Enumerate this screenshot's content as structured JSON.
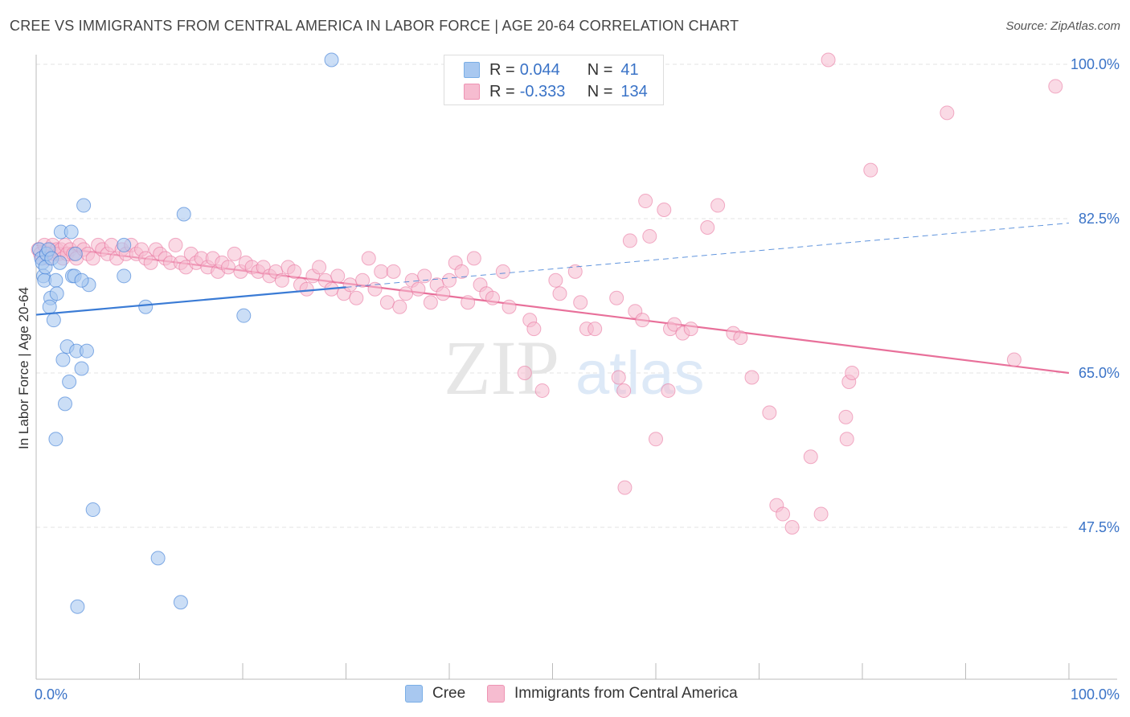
{
  "title": "CREE VS IMMIGRANTS FROM CENTRAL AMERICA IN LABOR FORCE | AGE 20-64 CORRELATION CHART",
  "source": "Source: ZipAtlas.com",
  "watermark": {
    "zip": "ZIP",
    "atlas": "atlas"
  },
  "legend": {
    "r_label": "R =",
    "n_label": "N =",
    "rows": [
      {
        "r": "0.044",
        "n": "41",
        "color": "#a8c8f0"
      },
      {
        "r": "-0.333",
        "n": "134",
        "color": "#f6bcd0"
      }
    ]
  },
  "bottom_legend": [
    "Cree",
    "Immigrants from Central America"
  ],
  "chart_data": {
    "type": "scatter",
    "title": "CREE VS IMMIGRANTS FROM CENTRAL AMERICA IN LABOR FORCE | AGE 20-64 CORRELATION CHART",
    "xlabel": "",
    "ylabel": "In Labor Force | Age 20-64",
    "xlim": [
      0,
      100
    ],
    "ylim": [
      30,
      102
    ],
    "x_tick_labels": [
      "0.0%",
      "100.0%"
    ],
    "y_ticks": [
      47.5,
      65.0,
      82.5,
      100.0
    ],
    "y_tick_labels": [
      "47.5%",
      "65.0%",
      "82.5%",
      "100.0%"
    ],
    "grid": "horizontal dashed",
    "legend_position": "top-center",
    "colors": {
      "cree": "#3a7bd5",
      "cree_fill": "#a8c8f0",
      "immigrants": "#e8709a",
      "immigrants_fill": "#f6bcd0",
      "tick_label": "#3a73c7"
    },
    "series": [
      {
        "name": "Cree",
        "stats": {
          "R": 0.044,
          "N": 41
        },
        "trend": {
          "x0": 0,
          "y0": 71.6,
          "x1": 100,
          "y1": 82.0,
          "solid_until_x": 30
        },
        "points": [
          [
            0.3,
            79.0
          ],
          [
            0.5,
            78.0
          ],
          [
            0.6,
            77.5
          ],
          [
            0.7,
            76.0
          ],
          [
            0.8,
            75.5
          ],
          [
            0.9,
            77.0
          ],
          [
            1.0,
            78.5
          ],
          [
            1.2,
            79.0
          ],
          [
            1.4,
            73.5
          ],
          [
            1.3,
            72.5
          ],
          [
            1.5,
            78.0
          ],
          [
            1.7,
            71.0
          ],
          [
            1.9,
            75.5
          ],
          [
            2.0,
            74.0
          ],
          [
            2.3,
            77.5
          ],
          [
            2.4,
            81.0
          ],
          [
            2.6,
            66.5
          ],
          [
            2.8,
            61.5
          ],
          [
            3.0,
            68.0
          ],
          [
            3.2,
            64.0
          ],
          [
            3.4,
            81.0
          ],
          [
            3.5,
            76.0
          ],
          [
            3.7,
            76.0
          ],
          [
            3.8,
            78.5
          ],
          [
            3.9,
            67.5
          ],
          [
            4.0,
            38.5
          ],
          [
            4.4,
            65.5
          ],
          [
            4.6,
            84.0
          ],
          [
            4.9,
            67.5
          ],
          [
            5.1,
            75.0
          ],
          [
            5.5,
            49.5
          ],
          [
            8.5,
            79.5
          ],
          [
            8.5,
            76.0
          ],
          [
            10.6,
            72.5
          ],
          [
            11.8,
            44.0
          ],
          [
            14.0,
            39.0
          ],
          [
            14.3,
            83.0
          ],
          [
            20.1,
            71.5
          ],
          [
            28.6,
            100.5
          ],
          [
            1.9,
            57.5
          ],
          [
            4.4,
            75.5
          ]
        ]
      },
      {
        "name": "Immigrants from Central America",
        "stats": {
          "R": -0.333,
          "N": 134
        },
        "trend": {
          "x0": 0,
          "y0": 79.5,
          "x1": 100,
          "y1": 65.0
        },
        "points": [
          [
            0.2,
            79.0
          ],
          [
            0.4,
            78.5
          ],
          [
            0.6,
            78.0
          ],
          [
            0.8,
            79.5
          ],
          [
            1.0,
            78.5
          ],
          [
            1.2,
            78.0
          ],
          [
            1.4,
            79.0
          ],
          [
            1.6,
            79.5
          ],
          [
            1.8,
            78.5
          ],
          [
            2.0,
            79.0
          ],
          [
            2.2,
            78.5
          ],
          [
            2.4,
            79.0
          ],
          [
            2.6,
            78.0
          ],
          [
            2.8,
            79.5
          ],
          [
            3.0,
            78.5
          ],
          [
            3.3,
            79.0
          ],
          [
            3.6,
            78.5
          ],
          [
            3.9,
            78.0
          ],
          [
            4.2,
            79.5
          ],
          [
            4.6,
            79.0
          ],
          [
            5.0,
            78.5
          ],
          [
            5.5,
            78.0
          ],
          [
            6.0,
            79.5
          ],
          [
            6.4,
            79.0
          ],
          [
            6.9,
            78.5
          ],
          [
            7.3,
            79.5
          ],
          [
            7.8,
            78.0
          ],
          [
            8.3,
            79.0
          ],
          [
            8.7,
            78.5
          ],
          [
            9.2,
            79.5
          ],
          [
            9.7,
            78.5
          ],
          [
            10.2,
            79.0
          ],
          [
            10.6,
            78.0
          ],
          [
            11.1,
            77.5
          ],
          [
            11.6,
            79.0
          ],
          [
            12.0,
            78.5
          ],
          [
            12.5,
            78.0
          ],
          [
            13.0,
            77.5
          ],
          [
            13.5,
            79.5
          ],
          [
            14.0,
            77.5
          ],
          [
            14.5,
            77.0
          ],
          [
            15.0,
            78.5
          ],
          [
            15.5,
            77.5
          ],
          [
            16.0,
            78.0
          ],
          [
            16.6,
            77.0
          ],
          [
            17.1,
            78.0
          ],
          [
            17.6,
            76.5
          ],
          [
            18.0,
            77.5
          ],
          [
            18.6,
            77.0
          ],
          [
            19.2,
            78.5
          ],
          [
            19.8,
            76.5
          ],
          [
            20.3,
            77.5
          ],
          [
            20.9,
            77.0
          ],
          [
            21.5,
            76.5
          ],
          [
            22.0,
            77.0
          ],
          [
            22.6,
            76.0
          ],
          [
            23.2,
            76.5
          ],
          [
            23.8,
            75.5
          ],
          [
            24.4,
            77.0
          ],
          [
            25.0,
            76.5
          ],
          [
            25.6,
            75.0
          ],
          [
            26.2,
            74.5
          ],
          [
            26.8,
            76.0
          ],
          [
            27.4,
            77.0
          ],
          [
            28.0,
            75.5
          ],
          [
            28.6,
            74.5
          ],
          [
            29.2,
            76.0
          ],
          [
            29.8,
            74.0
          ],
          [
            30.4,
            75.0
          ],
          [
            31.0,
            73.5
          ],
          [
            31.6,
            75.5
          ],
          [
            32.2,
            78.0
          ],
          [
            32.8,
            74.5
          ],
          [
            33.4,
            76.5
          ],
          [
            34.0,
            73.0
          ],
          [
            34.6,
            76.5
          ],
          [
            35.2,
            72.5
          ],
          [
            35.8,
            74.0
          ],
          [
            36.4,
            75.5
          ],
          [
            37.0,
            74.5
          ],
          [
            37.6,
            76.0
          ],
          [
            38.2,
            73.0
          ],
          [
            38.8,
            75.0
          ],
          [
            39.4,
            74.0
          ],
          [
            40.0,
            75.5
          ],
          [
            40.6,
            77.5
          ],
          [
            41.2,
            76.5
          ],
          [
            41.8,
            73.0
          ],
          [
            42.4,
            78.0
          ],
          [
            43.0,
            75.0
          ],
          [
            43.6,
            74.0
          ],
          [
            44.2,
            73.5
          ],
          [
            45.2,
            76.5
          ],
          [
            45.8,
            72.5
          ],
          [
            47.3,
            65.0
          ],
          [
            47.8,
            71.0
          ],
          [
            48.2,
            70.0
          ],
          [
            49.0,
            63.0
          ],
          [
            50.3,
            75.5
          ],
          [
            50.7,
            74.0
          ],
          [
            52.2,
            76.5
          ],
          [
            52.7,
            73.0
          ],
          [
            53.3,
            70.0
          ],
          [
            54.1,
            70.0
          ],
          [
            56.2,
            73.5
          ],
          [
            56.4,
            64.5
          ],
          [
            56.9,
            63.0
          ],
          [
            57.5,
            80.0
          ],
          [
            58.0,
            72.0
          ],
          [
            58.7,
            71.0
          ],
          [
            59.0,
            84.5
          ],
          [
            59.4,
            80.5
          ],
          [
            60.0,
            57.5
          ],
          [
            60.8,
            83.5
          ],
          [
            61.2,
            63.0
          ],
          [
            61.4,
            70.0
          ],
          [
            61.8,
            70.5
          ],
          [
            62.6,
            69.5
          ],
          [
            63.4,
            70.0
          ],
          [
            65.0,
            81.5
          ],
          [
            66.0,
            84.0
          ],
          [
            67.5,
            69.5
          ],
          [
            68.2,
            69.0
          ],
          [
            69.3,
            64.5
          ],
          [
            71.0,
            60.5
          ],
          [
            71.7,
            50.0
          ],
          [
            72.3,
            49.0
          ],
          [
            73.2,
            47.5
          ],
          [
            75.0,
            55.5
          ],
          [
            76.0,
            49.0
          ],
          [
            76.7,
            100.5
          ],
          [
            78.4,
            60.0
          ],
          [
            78.7,
            64.0
          ],
          [
            78.5,
            57.5
          ],
          [
            79.0,
            65.0
          ],
          [
            80.8,
            88.0
          ],
          [
            88.2,
            94.5
          ],
          [
            98.7,
            97.5
          ],
          [
            94.7,
            66.5
          ],
          [
            57.0,
            52.0
          ]
        ]
      }
    ]
  }
}
